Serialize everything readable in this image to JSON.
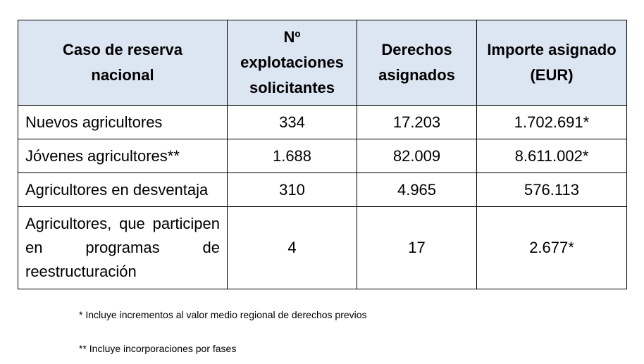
{
  "table": {
    "header": [
      "Caso de reserva nacional",
      "Nº explotaciones solicitantes",
      "Derechos asignados",
      "Importe asignado (EUR)"
    ],
    "rows": [
      [
        "Nuevos agricultores",
        "334",
        "17.203",
        "1.702.691*"
      ],
      [
        "Jóvenes agricultores**",
        "1.688",
        "82.009",
        "8.611.002*"
      ],
      [
        "Agricultores en desventaja",
        "310",
        "4.965",
        "576.113"
      ],
      [
        "Agricultores, que participen en programas de reestructuración",
        "4",
        "17",
        "2.677*"
      ]
    ]
  },
  "footnotes": [
    "* Incluye incrementos al valor medio regional de derechos previos",
    "** Incluye incorporaciones por fases"
  ]
}
